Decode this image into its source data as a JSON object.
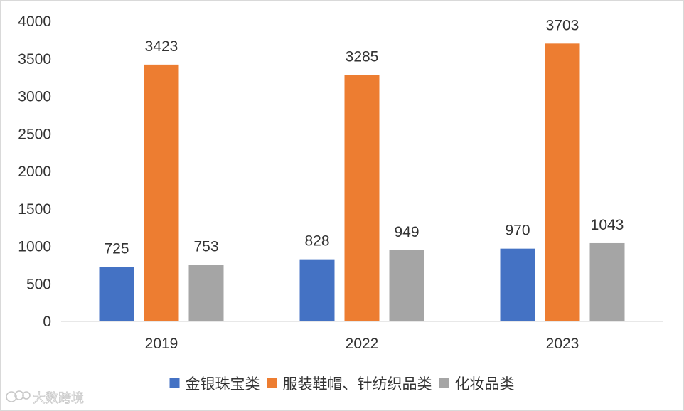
{
  "chart_data": {
    "type": "bar",
    "categories": [
      "2019",
      "2022",
      "2023"
    ],
    "series": [
      {
        "name": "金银珠宝类",
        "values": [
          725,
          828,
          970
        ],
        "color": "#4472C4"
      },
      {
        "name": "服装鞋帽、针纺织品类",
        "values": [
          3423,
          3285,
          3703
        ],
        "color": "#ED7D31"
      },
      {
        "name": "化妆品类",
        "values": [
          753,
          949,
          1043
        ],
        "color": "#A5A5A5"
      }
    ],
    "ylim": [
      0,
      4000
    ],
    "yticks": [
      0,
      500,
      1000,
      1500,
      2000,
      2500,
      3000,
      3500,
      4000
    ],
    "grid": false,
    "legend_position": "bottom",
    "data_labels": true
  },
  "watermark": {
    "text": "大数跨境",
    "icon": "brand-logo-icon"
  }
}
